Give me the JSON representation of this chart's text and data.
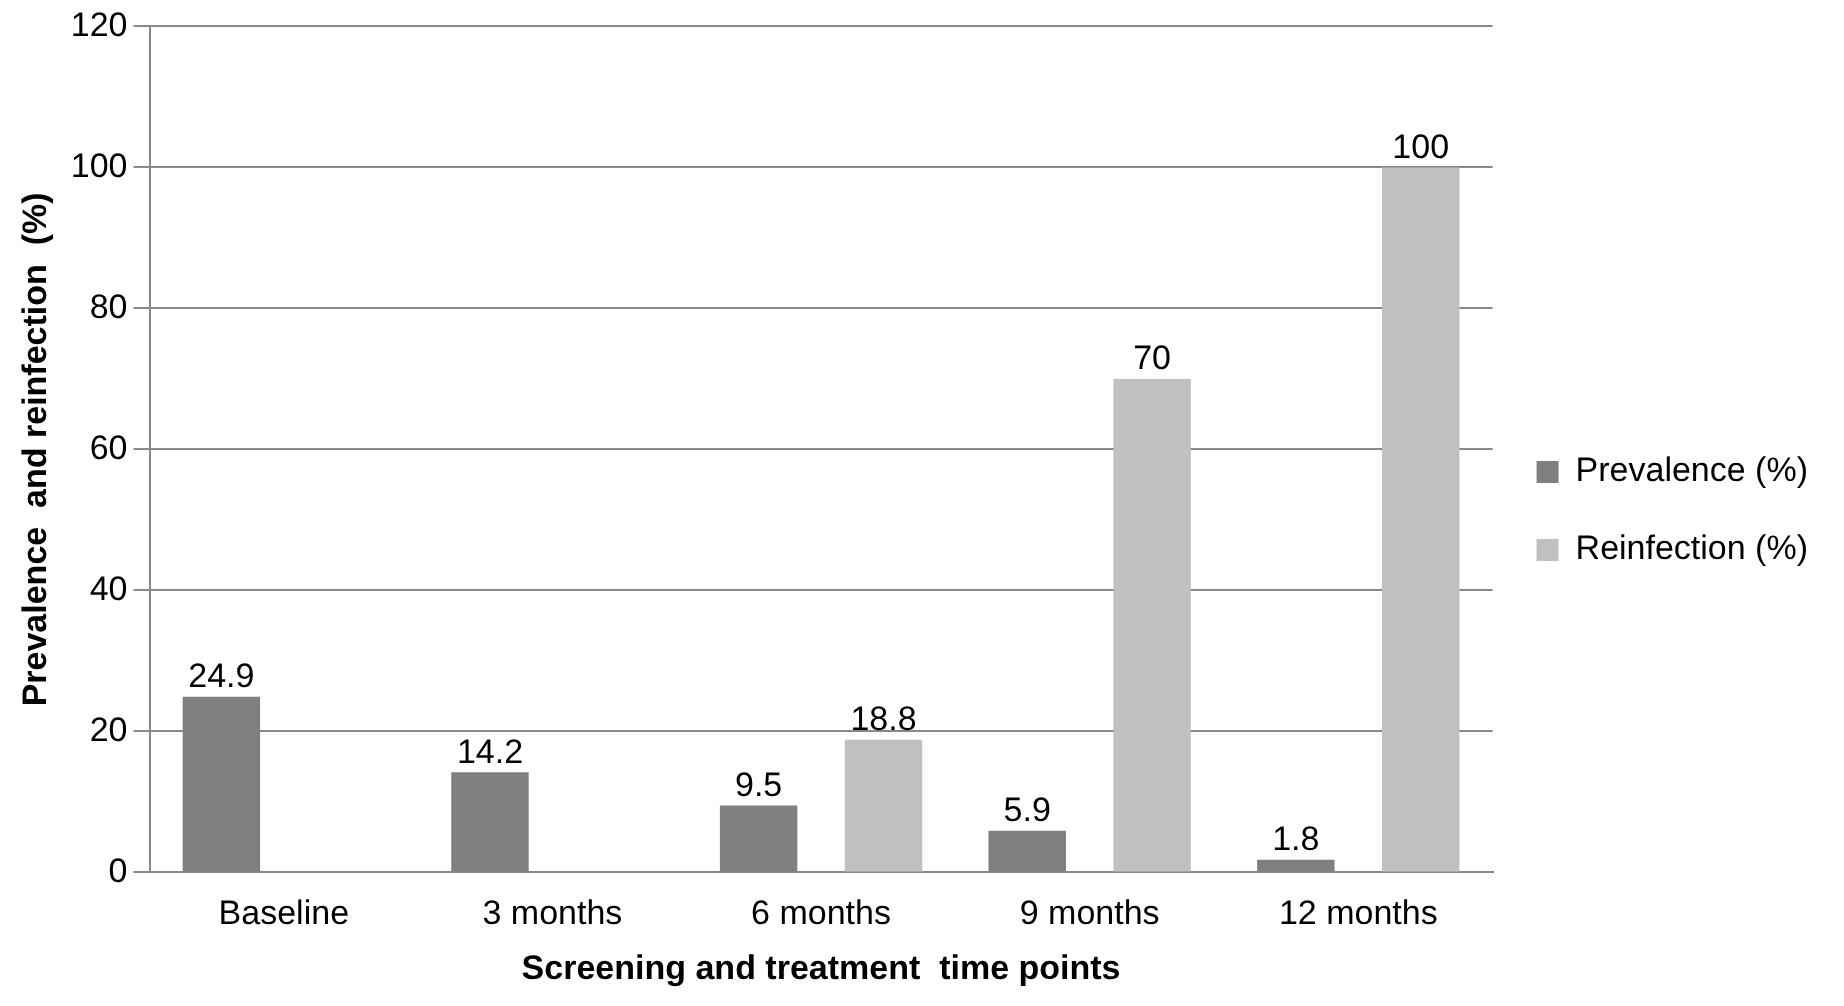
{
  "chart_data": {
    "type": "bar",
    "xlabel": "Screening and treatment  time points",
    "ylabel": "Prevalence  and reinfection  (%)",
    "categories": [
      "Baseline",
      "3 months",
      "6 months",
      "9 months",
      "12 months"
    ],
    "series": [
      {
        "name": "Prevalence (%)",
        "color": "#7f7f7f",
        "values": [
          24.9,
          14.2,
          9.5,
          5.9,
          1.8
        ]
      },
      {
        "name": "Reinfection (%)",
        "color": "#c0c0c0",
        "values": [
          null,
          null,
          18.8,
          70,
          100
        ]
      }
    ],
    "ylim": [
      0,
      120
    ],
    "yticks": [
      0,
      20,
      40,
      60,
      80,
      100,
      120
    ],
    "grid": "y",
    "legend": "right",
    "data_labels": true
  }
}
